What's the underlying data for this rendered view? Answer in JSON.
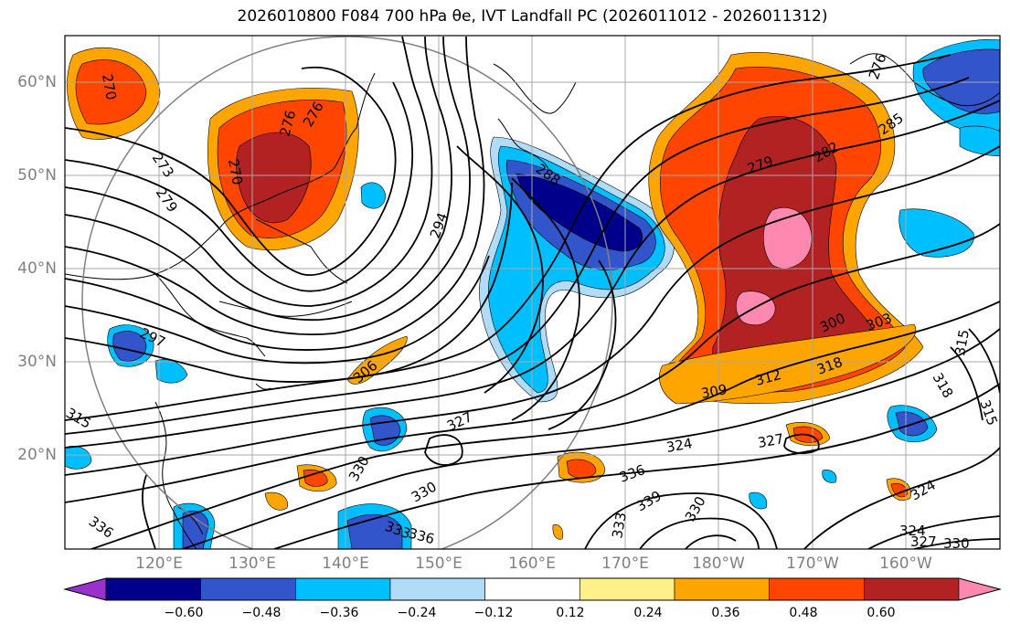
{
  "title": "2026010800 F084 700 hPa θe, IVT Landfall PC (2026011012 - 2026011312)",
  "map": {
    "lat_labels": [
      "60°N",
      "50°N",
      "40°N",
      "30°N",
      "20°N"
    ],
    "lon_labels": [
      "120°E",
      "130°E",
      "140°E",
      "150°E",
      "160°E",
      "170°E",
      "180°W",
      "170°W",
      "160°W"
    ],
    "contour_labels": [
      "270",
      "273",
      "276",
      "279",
      "270",
      "276",
      "288",
      "294",
      "297",
      "306",
      "315",
      "327",
      "330",
      "336",
      "309",
      "312",
      "318",
      "300",
      "303",
      "315",
      "318",
      "315",
      "279",
      "282",
      "285",
      "276",
      "324",
      "327",
      "330",
      "336",
      "339",
      "330",
      "324",
      "324",
      "327",
      "330",
      "333",
      "333",
      "336"
    ]
  },
  "colorbar": {
    "ticks": [
      "−0.60",
      "−0.48",
      "−0.36",
      "−0.24",
      "−0.12",
      "0.12",
      "0.24",
      "0.36",
      "0.48",
      "0.60"
    ],
    "colors": [
      "#9932cc",
      "#00008b",
      "#3355cc",
      "#00bfff",
      "#b0dcf8",
      "#ffffff",
      "#fff08a",
      "#ffa500",
      "#ff4500",
      "#b22222",
      "#ff88b0"
    ]
  }
}
